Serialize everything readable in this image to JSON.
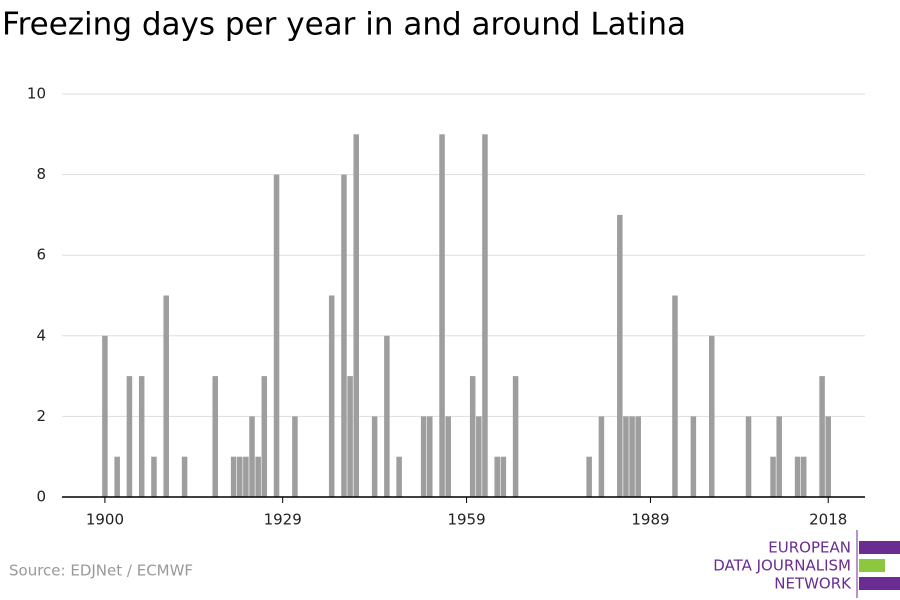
{
  "chart_data": {
    "type": "bar",
    "title": "Freezing days per year in and around Latina",
    "x": [
      1900,
      1902,
      1904,
      1906,
      1908,
      1910,
      1913,
      1918,
      1921,
      1922,
      1923,
      1924,
      1925,
      1926,
      1928,
      1931,
      1937,
      1939,
      1940,
      1941,
      1944,
      1946,
      1948,
      1952,
      1953,
      1955,
      1956,
      1960,
      1961,
      1962,
      1964,
      1965,
      1967,
      1979,
      1981,
      1984,
      1985,
      1986,
      1987,
      1993,
      1996,
      1999,
      2005,
      2009,
      2010,
      2013,
      2014,
      2017,
      2018
    ],
    "values": [
      4,
      1,
      3,
      3,
      1,
      5,
      1,
      3,
      1,
      1,
      1,
      2,
      1,
      3,
      8,
      2,
      5,
      8,
      3,
      9,
      2,
      4,
      1,
      2,
      2,
      9,
      2,
      3,
      2,
      9,
      1,
      1,
      3,
      1,
      2,
      7,
      2,
      2,
      2,
      5,
      2,
      4,
      2,
      1,
      2,
      1,
      1,
      3,
      2
    ],
    "color": "#9e9e9e",
    "xlim": [
      1893,
      2024
    ],
    "xticks": [
      1900,
      1929,
      1959,
      1989,
      2018
    ],
    "ylim": [
      0,
      10
    ],
    "yticks": [
      0,
      2,
      4,
      6,
      8,
      10
    ],
    "grid": true
  },
  "source": "Source: EDJNet / ECMWF",
  "logo": [
    "EUROPEAN",
    "DATA JOURNALISM",
    "NETWORK"
  ]
}
